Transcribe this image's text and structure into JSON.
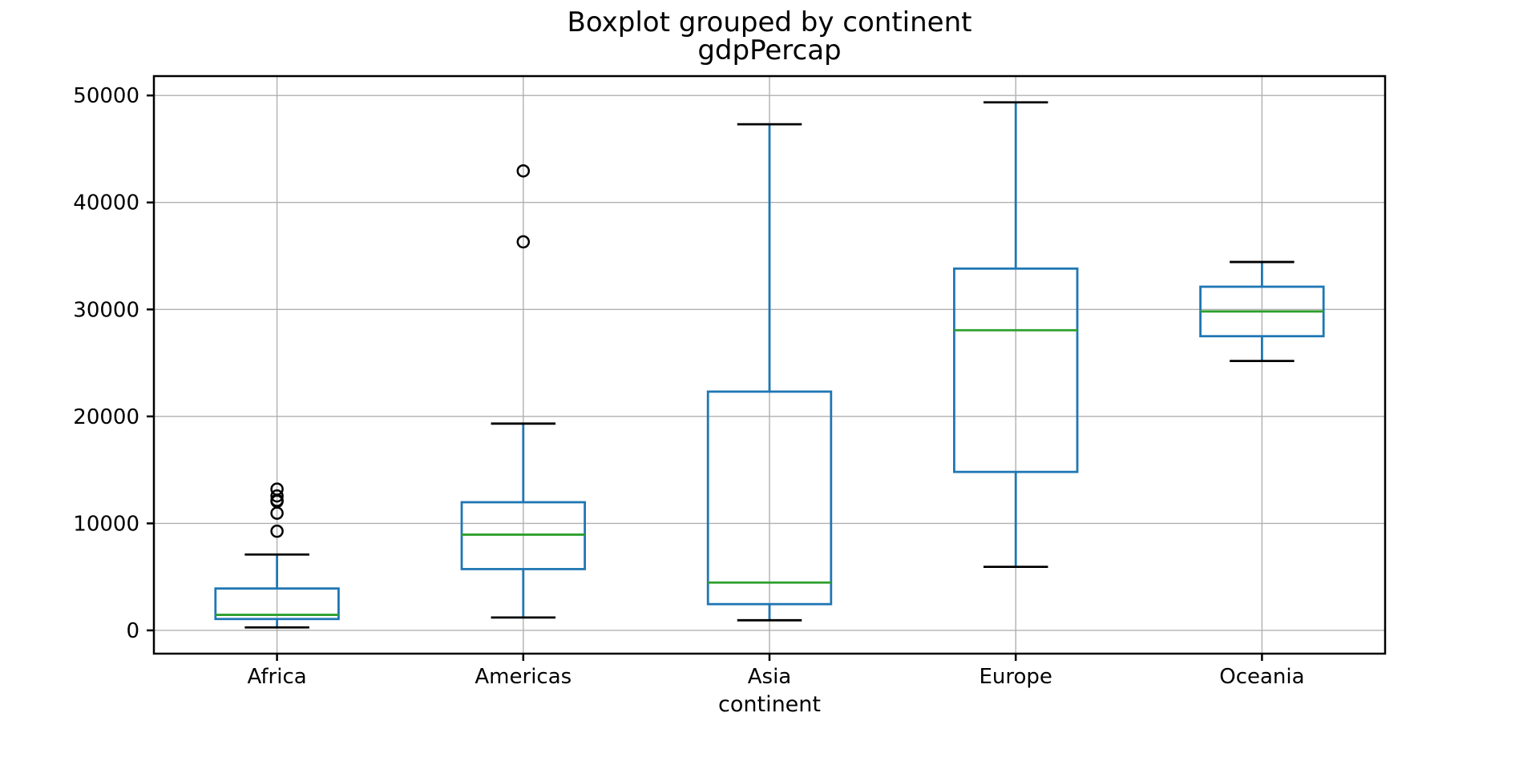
{
  "figure": {
    "background": "#ffffff"
  },
  "chart_data": {
    "type": "boxplot",
    "title": "Boxplot grouped by continent",
    "subtitle": "gdpPercap",
    "xlabel": "continent",
    "ylabel": "",
    "categories": [
      "Africa",
      "Americas",
      "Asia",
      "Europe",
      "Oceania"
    ],
    "yticks": [
      0,
      10000,
      20000,
      30000,
      40000,
      50000
    ],
    "ylim": [
      -2176,
      51811
    ],
    "grid": true,
    "legend_position": "none",
    "series": [
      {
        "category": "Africa",
        "whisker_low": 277.55,
        "q1": 1062.36,
        "median": 1452.27,
        "q3": 3914.52,
        "whisker_high": 7092.92,
        "outliers": [
          9269.66,
          10956.99,
          12057.49,
          12154.09,
          12569.85,
          13206.48
        ]
      },
      {
        "category": "Americas",
        "whisker_low": 1201.64,
        "q1": 5728.35,
        "median": 8948.1,
        "q3": 11977.57,
        "whisker_high": 19328.71,
        "outliers": [
          36319.24,
          42951.65
        ]
      },
      {
        "category": "Asia",
        "whisker_low": 944.0,
        "q1": 2452.21,
        "median": 4471.06,
        "q3": 22316.19,
        "whisker_high": 47306.99,
        "outliers": []
      },
      {
        "category": "Europe",
        "whisker_low": 5937.03,
        "q1": 14811.9,
        "median": 28054.07,
        "q3": 33817.96,
        "whisker_high": 49357.19,
        "outliers": []
      },
      {
        "category": "Oceania",
        "whisker_low": 25185.01,
        "q1": 27497.6,
        "median": 29810.19,
        "q3": 32122.74,
        "whisker_high": 34435.37,
        "outliers": []
      }
    ],
    "colors": {
      "box": "#1f77b4",
      "whisker": "#1f77b4",
      "median": "#2ca02c",
      "cap": "#000000",
      "outlier_edge": "#000000",
      "grid": "#b0b0b0",
      "spine": "#000000",
      "text": "#000000",
      "background": "#ffffff"
    }
  }
}
